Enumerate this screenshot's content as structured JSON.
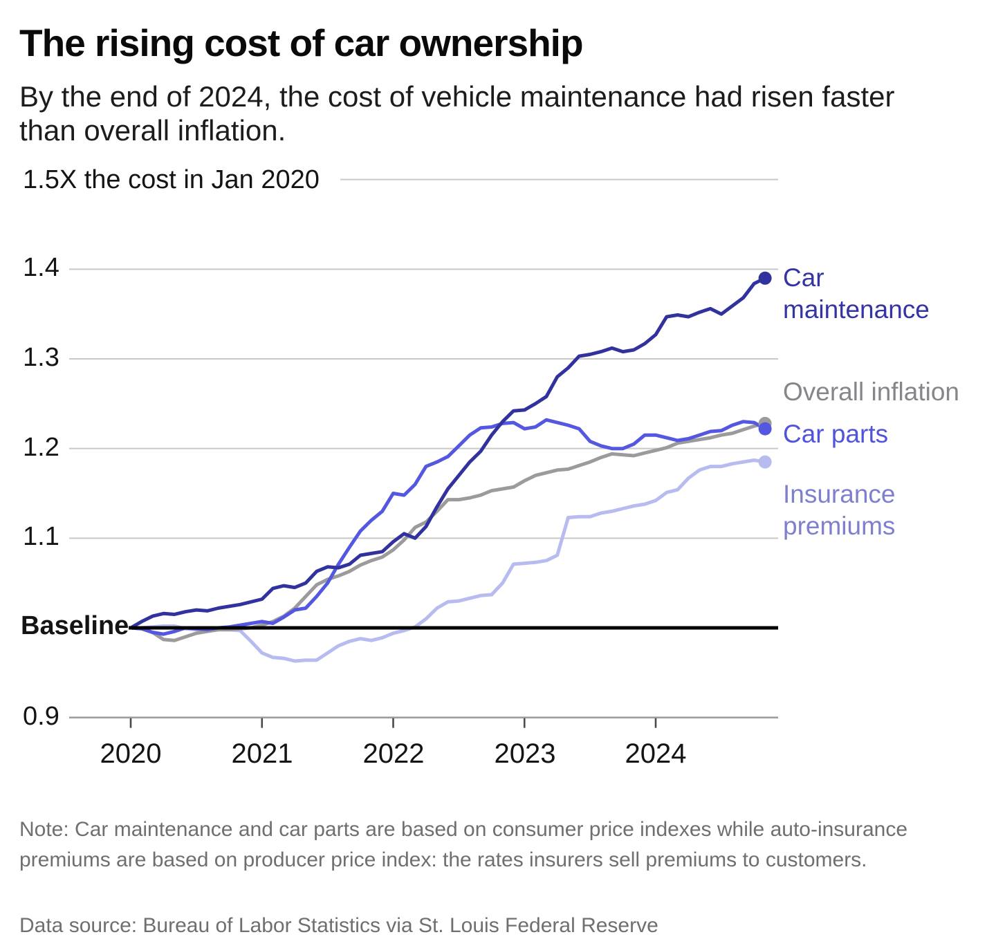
{
  "header": {
    "title": "The rising cost of car ownership",
    "subtitle": "By the end of 2024, the cost of vehicle maintenance had risen faster than overall inflation."
  },
  "notes": {
    "note": "Note: Car maintenance and car parts are based on consumer price indexes while auto-insurance premiums are based on producer price index: the rates insurers sell premiums to customers.",
    "source": "Data source: Bureau of Labor Statistics via St. Louis Federal Reserve"
  },
  "chart_data": {
    "type": "line",
    "title": "The rising cost of car ownership",
    "unit_label": "1.5X the cost in Jan 2020",
    "baseline_value": 1.0,
    "x_axis": {
      "tick_labels": [
        "2020",
        "2021",
        "2022",
        "2023",
        "2024"
      ],
      "start_month": "Jan 2020",
      "end_month": "Nov 2024",
      "points_per_year": 12
    },
    "y_axis": {
      "range": [
        0.9,
        1.5
      ],
      "gridline_values": [
        1.5,
        1.4,
        1.3,
        1.2,
        1.1,
        0.9
      ],
      "tick_labels": {
        "v15": "1.5X the cost in Jan 2020",
        "v14": "1.4",
        "v13": "1.3",
        "v12": "1.2",
        "v11": "1.1",
        "baseline": "Baseline",
        "v09": "0.9"
      }
    },
    "colors": {
      "gridline": "#c8c8c8",
      "axis_line": "#9e9e9e",
      "tick": "#4a4a4a",
      "baseline": "#000000"
    },
    "series": [
      {
        "name": "Car maintenance",
        "color": "#32329e",
        "label_color": "#3434a4",
        "end_value": 1.39,
        "values": [
          1.0,
          1.007,
          1.013,
          1.016,
          1.015,
          1.018,
          1.02,
          1.019,
          1.022,
          1.024,
          1.026,
          1.029,
          1.032,
          1.044,
          1.047,
          1.045,
          1.05,
          1.063,
          1.068,
          1.067,
          1.071,
          1.081,
          1.083,
          1.085,
          1.096,
          1.105,
          1.1,
          1.113,
          1.135,
          1.155,
          1.17,
          1.185,
          1.197,
          1.215,
          1.23,
          1.242,
          1.243,
          1.25,
          1.258,
          1.28,
          1.29,
          1.303,
          1.305,
          1.308,
          1.312,
          1.308,
          1.31,
          1.317,
          1.327,
          1.347,
          1.349,
          1.347,
          1.352,
          1.356,
          1.35,
          1.359,
          1.368,
          1.384,
          1.39
        ]
      },
      {
        "name": "Overall inflation",
        "color": "#9b9b9b",
        "label_color": "#86868a",
        "end_value": 1.23,
        "values": [
          1.0,
          0.999,
          0.995,
          0.987,
          0.986,
          0.99,
          0.994,
          0.996,
          0.998,
          0.998,
          0.999,
          1.0,
          1.003,
          1.007,
          1.013,
          1.022,
          1.035,
          1.048,
          1.054,
          1.058,
          1.063,
          1.07,
          1.075,
          1.079,
          1.087,
          1.098,
          1.112,
          1.118,
          1.13,
          1.143,
          1.143,
          1.145,
          1.148,
          1.153,
          1.155,
          1.157,
          1.164,
          1.17,
          1.173,
          1.176,
          1.177,
          1.181,
          1.185,
          1.19,
          1.194,
          1.193,
          1.192,
          1.195,
          1.198,
          1.201,
          1.206,
          1.208,
          1.21,
          1.212,
          1.215,
          1.217,
          1.221,
          1.225,
          1.228
        ]
      },
      {
        "name": "Car parts",
        "color": "#5458e0",
        "label_color": "#5154da",
        "end_value": 1.22,
        "values": [
          1.0,
          0.999,
          0.995,
          0.993,
          0.996,
          1.0,
          0.999,
          0.998,
          1.0,
          1.001,
          1.003,
          1.005,
          1.007,
          1.005,
          1.012,
          1.02,
          1.022,
          1.035,
          1.05,
          1.071,
          1.09,
          1.108,
          1.12,
          1.13,
          1.15,
          1.148,
          1.16,
          1.18,
          1.185,
          1.191,
          1.203,
          1.215,
          1.223,
          1.224,
          1.228,
          1.229,
          1.222,
          1.224,
          1.232,
          1.229,
          1.226,
          1.222,
          1.208,
          1.203,
          1.2,
          1.2,
          1.205,
          1.215,
          1.215,
          1.212,
          1.209,
          1.211,
          1.215,
          1.219,
          1.22,
          1.226,
          1.23,
          1.229,
          1.222
        ]
      },
      {
        "name": "Insurance premiums",
        "color": "#b8bbf0",
        "label_color": "#7e80cd",
        "end_value": 1.185,
        "values": [
          1.0,
          1.0,
          1.001,
          1.002,
          1.002,
          0.999,
          0.998,
          0.997,
          0.998,
          0.998,
          0.997,
          0.985,
          0.972,
          0.967,
          0.966,
          0.963,
          0.964,
          0.964,
          0.972,
          0.98,
          0.985,
          0.988,
          0.986,
          0.989,
          0.994,
          0.997,
          1.001,
          1.01,
          1.022,
          1.029,
          1.03,
          1.033,
          1.036,
          1.037,
          1.05,
          1.071,
          1.072,
          1.073,
          1.075,
          1.081,
          1.123,
          1.124,
          1.124,
          1.128,
          1.13,
          1.133,
          1.136,
          1.138,
          1.142,
          1.151,
          1.154,
          1.167,
          1.176,
          1.18,
          1.18,
          1.183,
          1.185,
          1.187,
          1.185
        ]
      }
    ],
    "legend_position": "right"
  }
}
